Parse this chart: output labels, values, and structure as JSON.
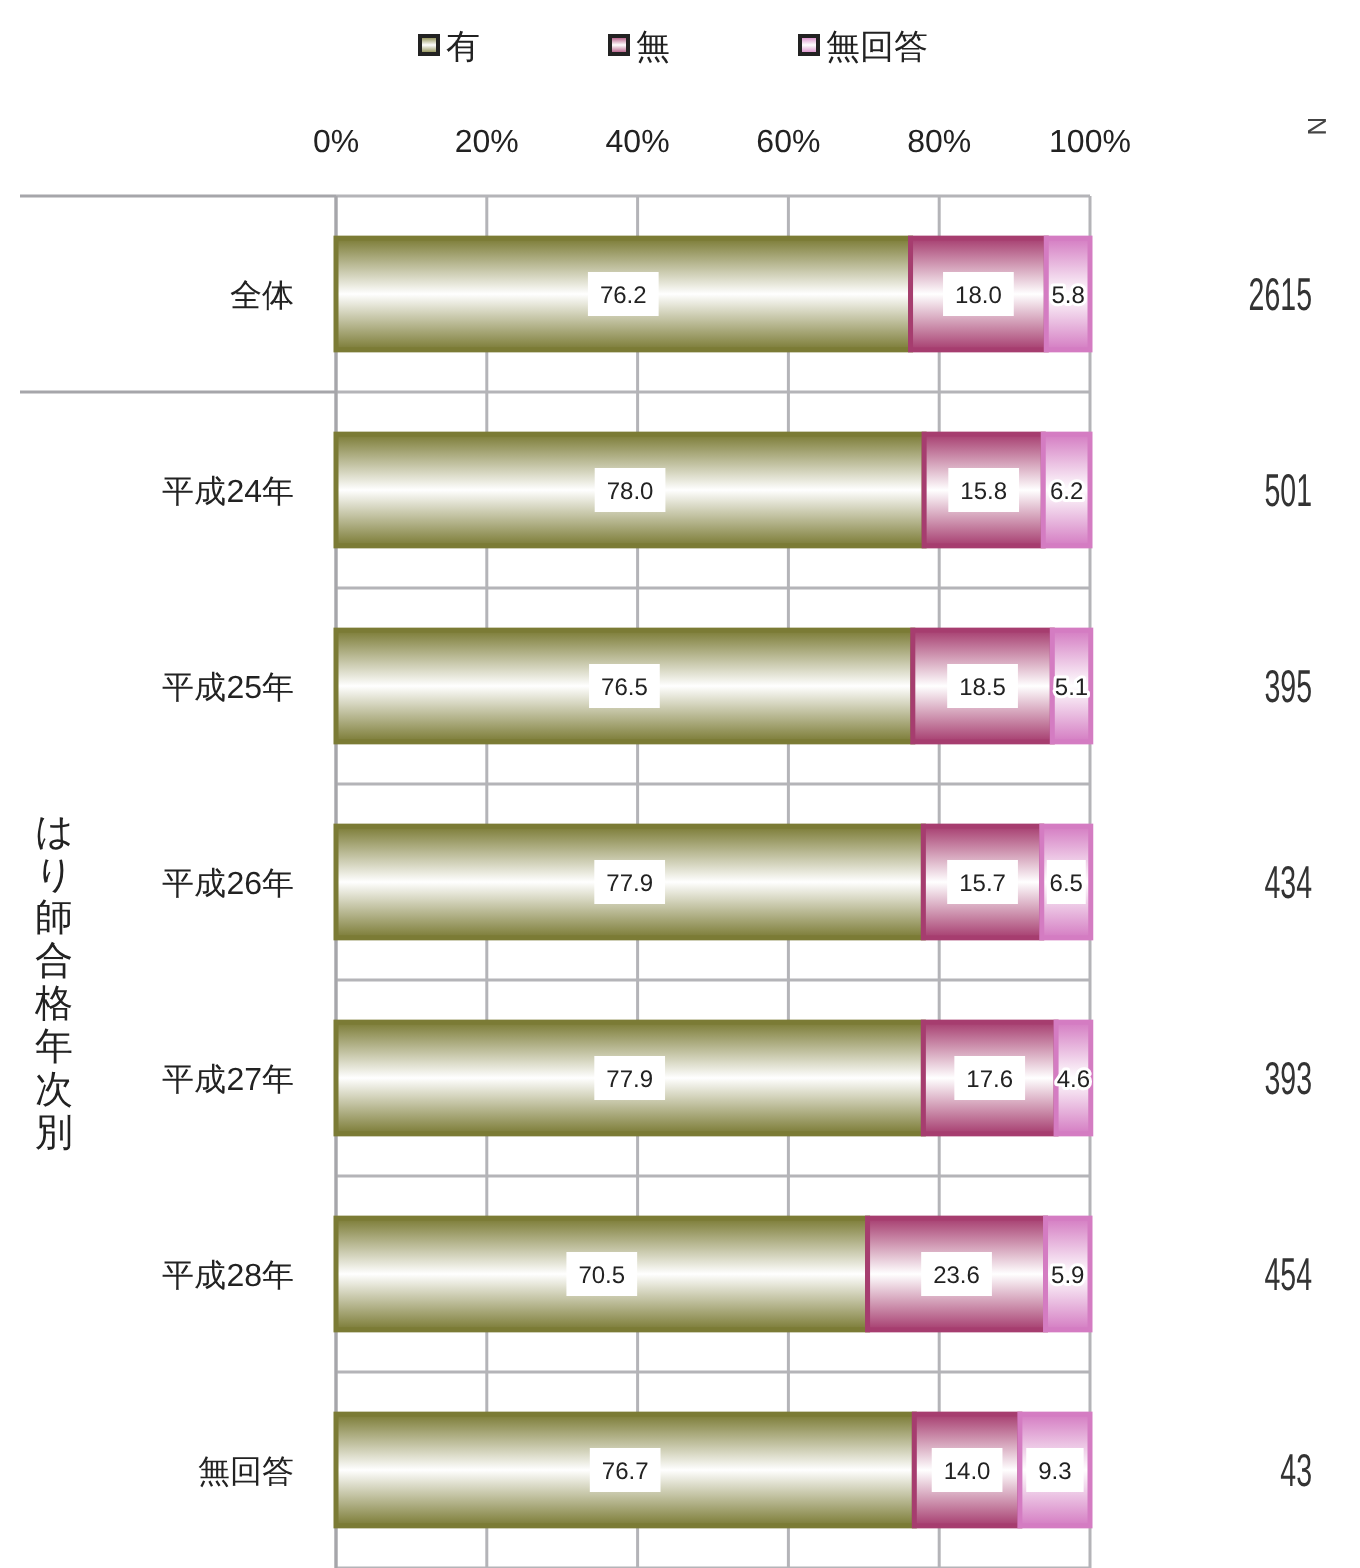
{
  "chart_data": {
    "type": "bar",
    "orientation": "horizontal",
    "stacked": true,
    "categories": [
      "全体",
      "平成24年",
      "平成25年",
      "平成26年",
      "平成27年",
      "平成28年",
      "無回答"
    ],
    "series": [
      {
        "name": "有",
        "color": "#7b7b35",
        "values": [
          76.2,
          78.0,
          76.5,
          77.9,
          77.9,
          70.5,
          76.7
        ],
        "value_labels": [
          "76.2",
          "78.0",
          "76.5",
          "77.9",
          "77.9",
          "70.5",
          "76.7"
        ]
      },
      {
        "name": "無",
        "color": "#a63d6f",
        "values": [
          18.0,
          15.8,
          18.5,
          15.7,
          17.6,
          23.6,
          14.0
        ],
        "value_labels": [
          "18.0",
          "15.8",
          "18.5",
          "15.7",
          "17.6",
          "23.6",
          "14.0"
        ]
      },
      {
        "name": "無回答",
        "color": "#d47cc2",
        "values": [
          5.8,
          6.2,
          5.1,
          6.5,
          4.6,
          5.9,
          9.3
        ],
        "value_labels": [
          "5.8",
          "6.2",
          "5.1",
          "6.5",
          "4.6",
          "5.9",
          "9.3"
        ]
      }
    ],
    "ylabel": "はり師合格年次別",
    "xlim": [
      0,
      100
    ],
    "xticks": [
      {
        "value": 0,
        "label": "0%"
      },
      {
        "value": 20,
        "label": "20%"
      },
      {
        "value": 40,
        "label": "40%"
      },
      {
        "value": 60,
        "label": "60%"
      },
      {
        "value": 80,
        "label": "80%"
      },
      {
        "value": 100,
        "label": "100%"
      }
    ],
    "grid": true,
    "legend": "top",
    "annotations": [
      "N",
      "2615",
      "501",
      "395",
      "434",
      "393",
      "454",
      "43"
    ]
  }
}
